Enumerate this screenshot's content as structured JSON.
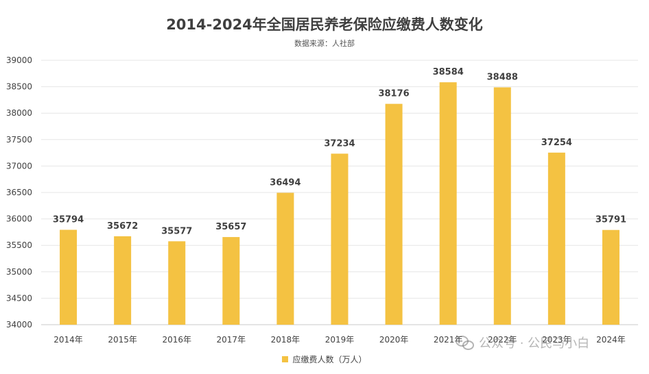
{
  "chart_data": {
    "type": "bar",
    "title": "2014-2024年全国居民养老保险应缴费人数变化",
    "subtitle": "数据来源：人社部",
    "categories": [
      "2014年",
      "2015年",
      "2016年",
      "2017年",
      "2018年",
      "2019年",
      "2020年",
      "2021年",
      "2022年",
      "2023年",
      "2024年"
    ],
    "series": [
      {
        "name": "应缴费人数（万人）",
        "values": [
          35794,
          35672,
          35577,
          35657,
          36494,
          37234,
          38176,
          38584,
          38488,
          37254,
          35791
        ],
        "color": "#f4c242"
      }
    ],
    "y_ticks": [
      "34000",
      "34500",
      "35000",
      "35500",
      "36000",
      "36500",
      "37000",
      "37500",
      "38000",
      "38500",
      "39000"
    ],
    "ylim": [
      34000,
      39000
    ],
    "grid": true,
    "legend_position": "bottom"
  },
  "watermark": {
    "icon": "wechat-logo",
    "text": "公众号 · 公民马小白"
  }
}
